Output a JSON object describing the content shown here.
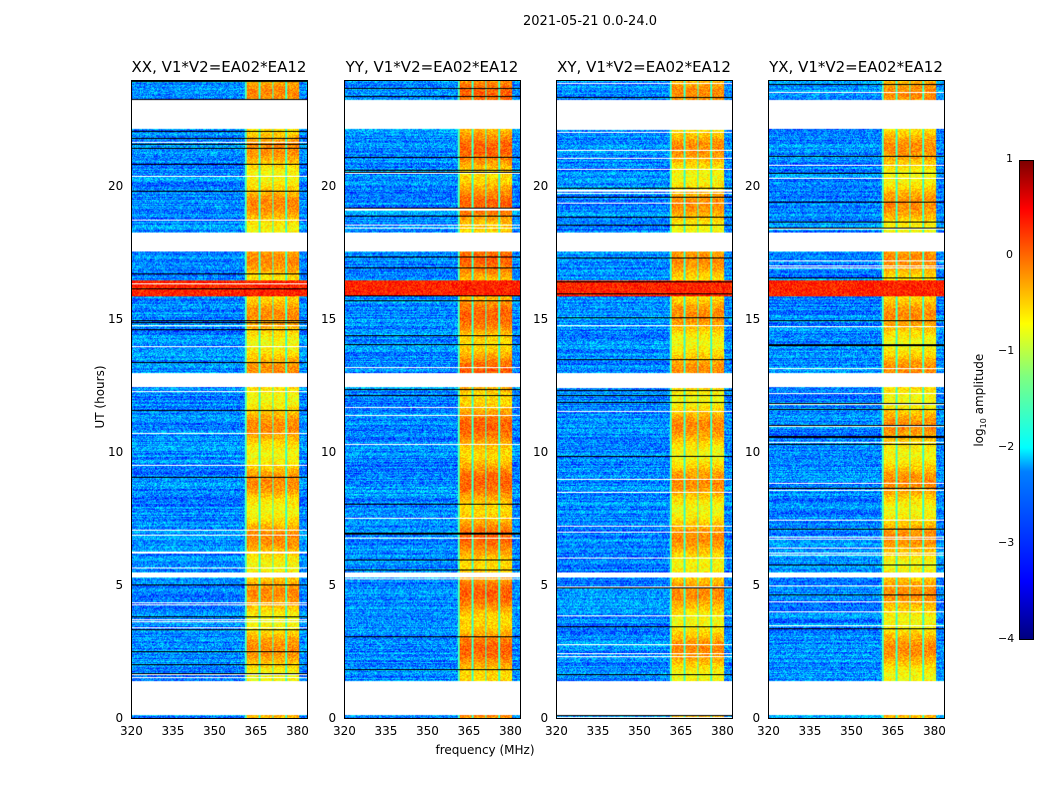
{
  "chart_data": {
    "type": "heatmap",
    "title": "2021-05-21 0.0-24.0",
    "xlabel": "frequency (MHz)",
    "ylabel": "UT (hours)",
    "xlim": [
      320,
      384
    ],
    "ylim": [
      0,
      24
    ],
    "xticks": [
      "320",
      "335",
      "350",
      "365",
      "380"
    ],
    "xtick_values": [
      320,
      335,
      350,
      365,
      380
    ],
    "yticks": [
      "0",
      "5",
      "10",
      "15",
      "20"
    ],
    "ytick_values": [
      0,
      5,
      10,
      15,
      20
    ],
    "panels": [
      {
        "title": "XX, V1*V2=EA02*EA12"
      },
      {
        "title": "YY, V1*V2=EA02*EA12"
      },
      {
        "title": "XY, V1*V2=EA02*EA12"
      },
      {
        "title": "YX, V1*V2=EA02*EA12"
      }
    ],
    "time_segments_with_data_hours": [
      [
        0,
        0.15
      ],
      [
        1.4,
        5.3
      ],
      [
        5.5,
        12.5
      ],
      [
        13,
        17.6
      ],
      [
        18.3,
        22.2
      ],
      [
        23.3,
        24
      ]
    ],
    "rfi_band_mhz": [
      361,
      381
    ],
    "strong_rfi_time_hours": [
      15.9,
      16.5
    ],
    "background_log10_amplitude": -2.7,
    "rfi_log10_amplitude": -0.6,
    "colorbar": {
      "label": "log10 amplitude",
      "label_main": "log",
      "label_sub": "10",
      "label_rest": " amplitude",
      "range": [
        -4,
        1
      ],
      "ticks": [
        "1",
        "0",
        "−1",
        "−2",
        "−3",
        "−4"
      ],
      "tick_values": [
        1,
        0,
        -1,
        -2,
        -3,
        -4
      ],
      "colormap": "jet"
    }
  }
}
